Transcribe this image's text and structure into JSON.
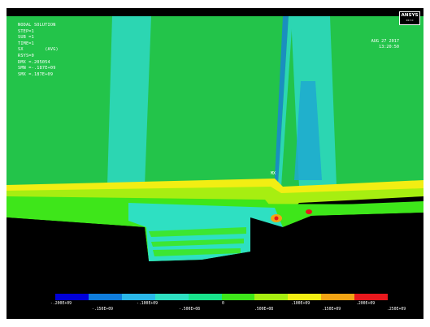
{
  "plot": {
    "title": "NODAL SOLUTION",
    "info_lines": [
      "STEP=1",
      "SUB =1",
      "TIME=1",
      "SX        (AVG)",
      "RSYS=0",
      "DMX =.205054",
      "SMN =-.187E+09",
      "SMX =.187E+09"
    ],
    "date": "AUG 27 2017",
    "time": "13:20:50",
    "logo": "ANSYS",
    "logo_sub": "R17.0",
    "max_marker": "MX"
  },
  "legend": {
    "colors": [
      "#0000d8",
      "#0f7ddc",
      "#2ab7e8",
      "#2ee0c2",
      "#18e48c",
      "#3ee61a",
      "#a7ee11",
      "#f2ee13",
      "#f2a414",
      "#e8181d"
    ],
    "labels_top": [
      "-.200E+09",
      "-.100E+09",
      "0",
      ".100E+09",
      ".200E+09"
    ],
    "labels_bottom": [
      "-.150E+09",
      "-.500E+08",
      ".500E+08",
      ".150E+09",
      ".250E+09"
    ]
  },
  "colors": {
    "background": "#000000",
    "upper_green": "#23c44a",
    "stripe_cyan": "#2cd6b2",
    "band_yellow": "#f2ee13",
    "band_green": "#7ee62b"
  }
}
